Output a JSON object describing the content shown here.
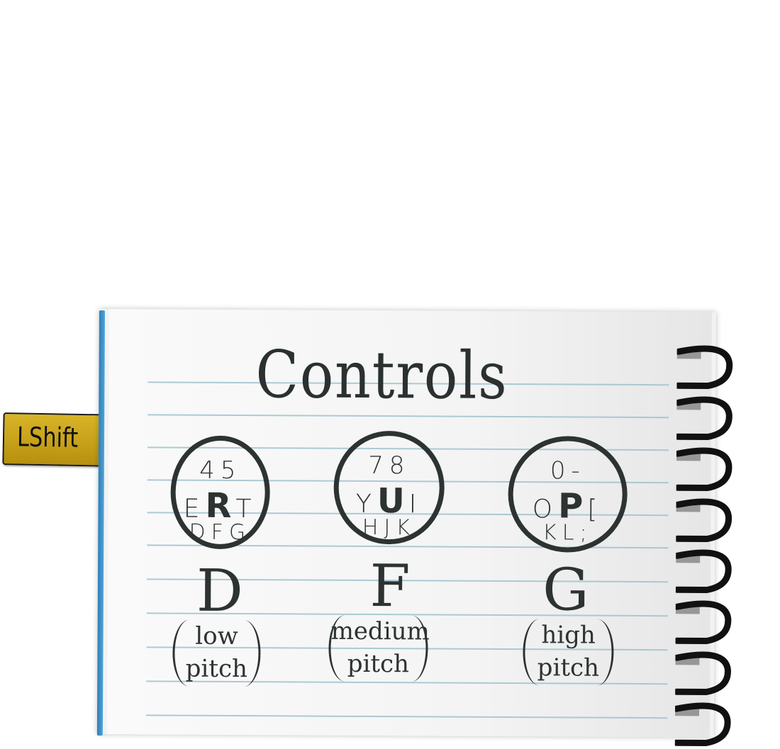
{
  "title": "Controls",
  "shift_tab": {
    "label": "LShift"
  },
  "groups": [
    {
      "key_rows": [
        "45",
        "ERT",
        "DFG"
      ],
      "big_key": "R",
      "pitch_key": "D",
      "pitch_desc": [
        "low",
        "pitch"
      ]
    },
    {
      "key_rows": [
        "78",
        "YUI",
        "HJK"
      ],
      "big_key": "U",
      "pitch_key": "F",
      "pitch_desc": [
        "medium",
        "pitch"
      ]
    },
    {
      "key_rows": [
        "0-",
        "OP[",
        "KL;"
      ],
      "big_key": "P",
      "pitch_key": "G",
      "pitch_desc": [
        "high",
        "pitch"
      ]
    }
  ],
  "colors": {
    "ink": "#2c3331",
    "rule": "#9fc2cc",
    "spine": "#3a8fc8",
    "tab": "#c9a31b"
  }
}
